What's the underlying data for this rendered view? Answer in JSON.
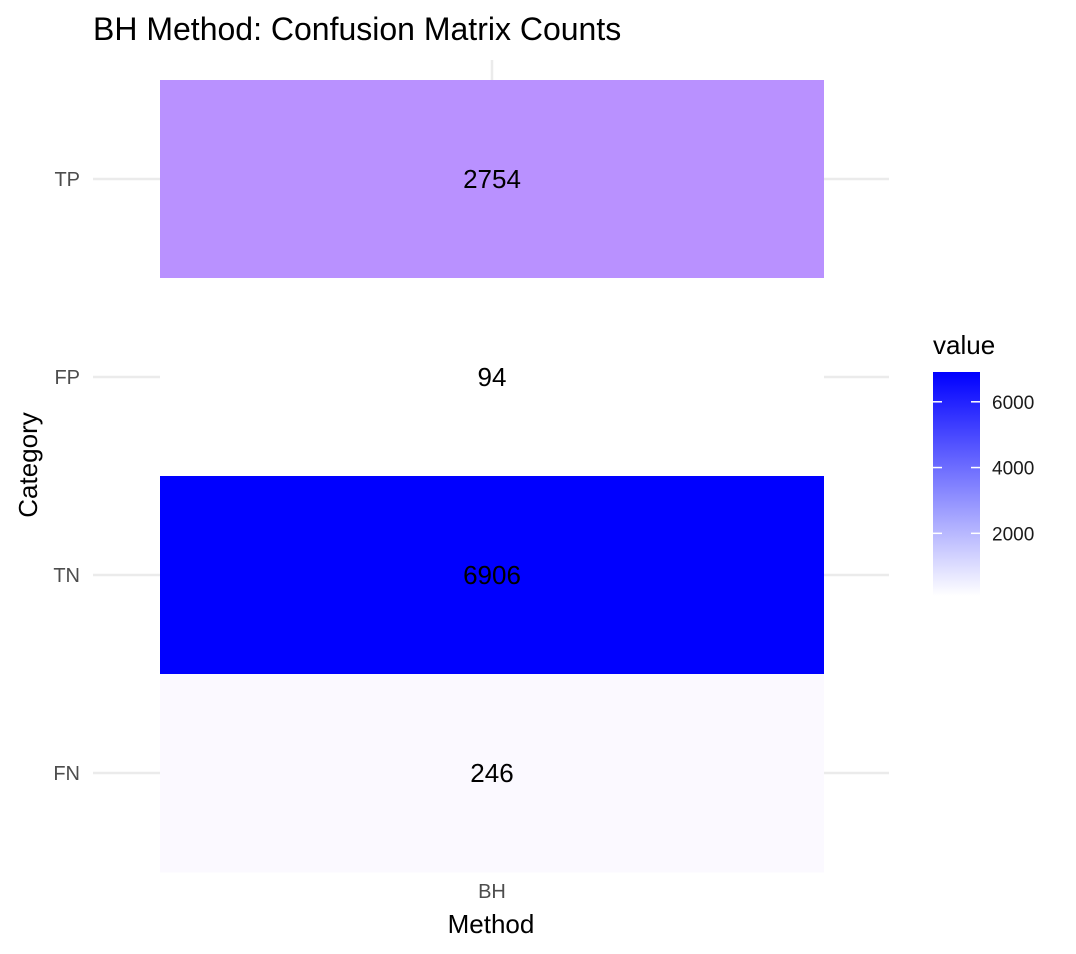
{
  "chart_data": {
    "type": "heatmap",
    "title": "BH Method: Confusion Matrix Counts",
    "xlabel": "Method",
    "ylabel": "Category",
    "x_categories": [
      "BH"
    ],
    "y_categories": [
      "TP",
      "FP",
      "TN",
      "FN"
    ],
    "cells": [
      {
        "x": "BH",
        "y": "TP",
        "value": 2754,
        "label": "2754"
      },
      {
        "x": "BH",
        "y": "FP",
        "value": 94,
        "label": "94"
      },
      {
        "x": "BH",
        "y": "TN",
        "value": 6906,
        "label": "6906"
      },
      {
        "x": "BH",
        "y": "FN",
        "value": 246,
        "label": "246"
      }
    ],
    "legend": {
      "title": "value",
      "placement": "right",
      "ticks": [
        2000,
        4000,
        6000
      ],
      "range": [
        94,
        6906
      ],
      "color_low": "#ffffff",
      "color_high": "#0000ff"
    },
    "grid": true
  }
}
